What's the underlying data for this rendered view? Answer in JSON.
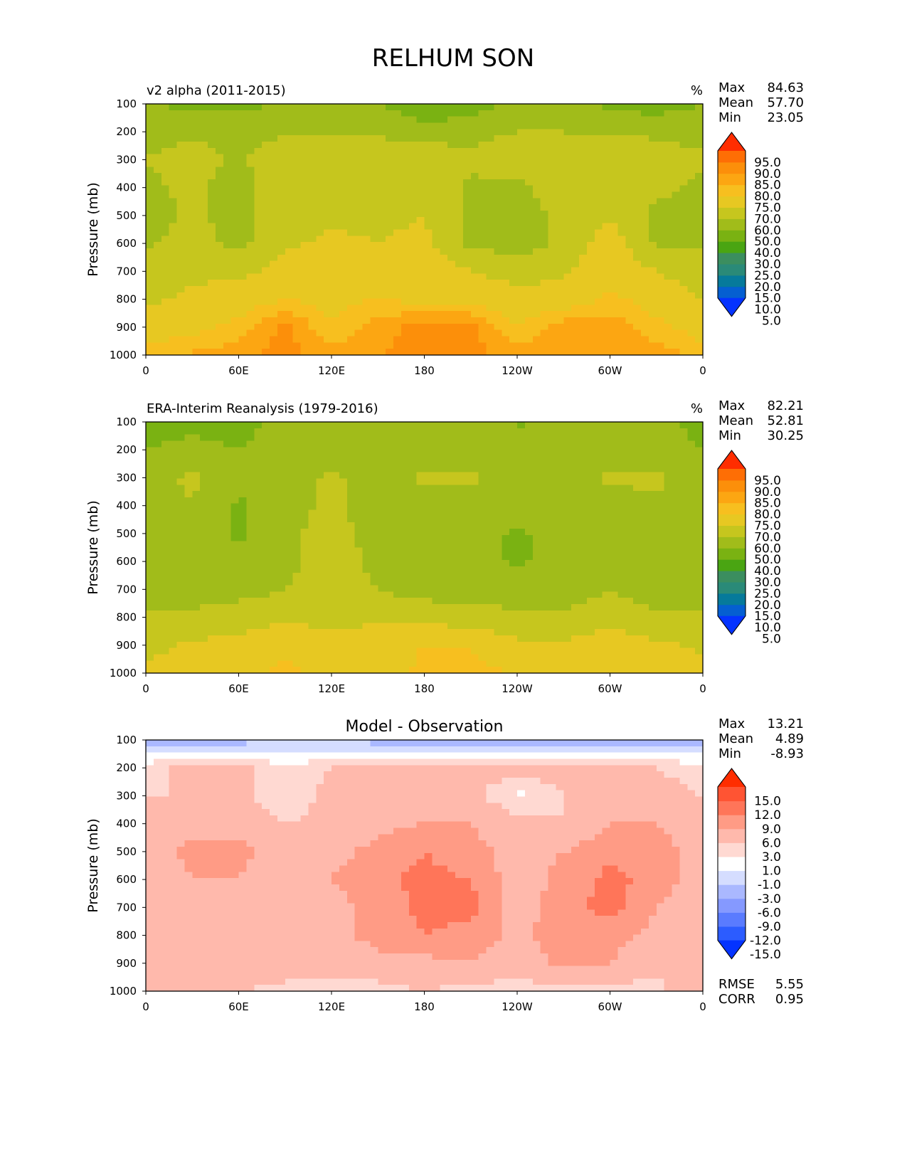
{
  "page": {
    "title": "RELHUM SON"
  },
  "colors": {
    "abs": [
      "#0433ff",
      "#055fd1",
      "#067a9b",
      "#2a8a78",
      "#3b8e5f",
      "#4aa512",
      "#7ab212",
      "#a1bc1a",
      "#c6c61e",
      "#e7c822",
      "#f7bf1f",
      "#fca612",
      "#fc8f0a",
      "#fe6e05",
      "#ff2d00"
    ],
    "diff": [
      "#0433ff",
      "#2c5cff",
      "#5a7bff",
      "#8599ff",
      "#aab8ff",
      "#d5ddff",
      "#ffffff",
      "#ffd9d2",
      "#ffb9ac",
      "#ff9b85",
      "#ff7559",
      "#ff5433",
      "#ff2d00"
    ]
  },
  "chart_data": [
    {
      "type": "heatmap",
      "title": "v2 alpha (2011-2015)",
      "units": "%",
      "xlabel": "",
      "ylabel": "Pressure (mb)",
      "x_ticks": [
        "0",
        "60E",
        "120E",
        "180",
        "120W",
        "60W",
        "0"
      ],
      "y_ticks": [
        "100",
        "200",
        "300",
        "400",
        "500",
        "600",
        "700",
        "800",
        "900",
        "1000"
      ],
      "xlim": [
        0,
        360
      ],
      "ylim": [
        100,
        1000
      ],
      "stats": [
        {
          "label": "Max",
          "value": "84.63"
        },
        {
          "label": "Mean",
          "value": "57.70"
        },
        {
          "label": "Min",
          "value": "23.05"
        }
      ],
      "colorbar": {
        "labels": [
          "95.0",
          "90.0",
          "85.0",
          "80.0",
          "75.0",
          "70.0",
          "60.0",
          "50.0",
          "40.0",
          "30.0",
          "25.0",
          "20.0",
          "15.0",
          "10.0",
          "5.0"
        ],
        "extend": "both"
      },
      "x": [
        0,
        30,
        60,
        90,
        120,
        150,
        180,
        210,
        240,
        270,
        300,
        330,
        360
      ],
      "y": [
        100,
        200,
        300,
        400,
        500,
        600,
        700,
        800,
        900,
        1000
      ],
      "z": [
        [
          40,
          38,
          38,
          40,
          45,
          42,
          30,
          35,
          42,
          42,
          38,
          35,
          40
        ],
        [
          46,
          48,
          46,
          48,
          50,
          48,
          46,
          46,
          50,
          50,
          48,
          48,
          46
        ],
        [
          50,
          55,
          48,
          58,
          58,
          58,
          58,
          52,
          58,
          58,
          58,
          56,
          52
        ],
        [
          48,
          52,
          45,
          58,
          58,
          58,
          58,
          48,
          47,
          58,
          58,
          52,
          48
        ],
        [
          45,
          52,
          45,
          58,
          58,
          58,
          60,
          48,
          45,
          52,
          58,
          48,
          45
        ],
        [
          48,
          55,
          47,
          58,
          62,
          60,
          62,
          48,
          46,
          52,
          66,
          48,
          48
        ],
        [
          55,
          58,
          57,
          64,
          67,
          67,
          67,
          60,
          55,
          58,
          68,
          60,
          55
        ],
        [
          58,
          62,
          66,
          70,
          68,
          70,
          68,
          68,
          65,
          65,
          72,
          66,
          60
        ],
        [
          66,
          68,
          72,
          82,
          70,
          78,
          82,
          82,
          70,
          78,
          78,
          72,
          66
        ],
        [
          72,
          76,
          78,
          82,
          78,
          80,
          82,
          82,
          78,
          80,
          80,
          78,
          74
        ]
      ]
    },
    {
      "type": "heatmap",
      "title": "ERA-Interim Reanalysis (1979-2016)",
      "units": "%",
      "xlabel": "",
      "ylabel": "Pressure (mb)",
      "x_ticks": [
        "0",
        "60E",
        "120E",
        "180",
        "120W",
        "60W",
        "0"
      ],
      "y_ticks": [
        "100",
        "200",
        "300",
        "400",
        "500",
        "600",
        "700",
        "800",
        "900",
        "1000"
      ],
      "xlim": [
        0,
        360
      ],
      "ylim": [
        100,
        1000
      ],
      "stats": [
        {
          "label": "Max",
          "value": "82.21"
        },
        {
          "label": "Mean",
          "value": "52.81"
        },
        {
          "label": "Min",
          "value": "30.25"
        }
      ],
      "colorbar": {
        "labels": [
          "95.0",
          "90.0",
          "85.0",
          "80.0",
          "75.0",
          "70.0",
          "60.0",
          "50.0",
          "40.0",
          "30.0",
          "25.0",
          "20.0",
          "15.0",
          "10.0",
          "5.0"
        ],
        "extend": "both"
      },
      "x": [
        0,
        30,
        60,
        90,
        120,
        150,
        180,
        210,
        240,
        270,
        300,
        330,
        360
      ],
      "y": [
        100,
        200,
        300,
        400,
        500,
        600,
        700,
        800,
        900,
        1000
      ],
      "z": [
        [
          38,
          38,
          38,
          42,
          45,
          48,
          42,
          40,
          40,
          40,
          44,
          42,
          38
        ],
        [
          40,
          42,
          40,
          42,
          40,
          40,
          40,
          40,
          40,
          40,
          42,
          42,
          40
        ],
        [
          45,
          52,
          45,
          46,
          52,
          45,
          52,
          52,
          45,
          45,
          52,
          52,
          45
        ],
        [
          45,
          50,
          38,
          46,
          52,
          45,
          46,
          45,
          45,
          45,
          45,
          48,
          45
        ],
        [
          45,
          46,
          38,
          47,
          55,
          45,
          45,
          45,
          38,
          45,
          45,
          45,
          42
        ],
        [
          45,
          45,
          42,
          47,
          57,
          47,
          45,
          45,
          38,
          45,
          45,
          45,
          45
        ],
        [
          46,
          45,
          46,
          50,
          52,
          50,
          46,
          45,
          45,
          45,
          50,
          45,
          45
        ],
        [
          52,
          52,
          56,
          58,
          56,
          58,
          56,
          55,
          52,
          52,
          56,
          52,
          52
        ],
        [
          56,
          62,
          62,
          68,
          65,
          66,
          70,
          70,
          62,
          62,
          66,
          62,
          58
        ],
        [
          64,
          66,
          68,
          72,
          68,
          66,
          72,
          72,
          70,
          70,
          70,
          68,
          64
        ]
      ]
    },
    {
      "type": "heatmap",
      "title": "Model - Observation",
      "units": "",
      "xlabel": "",
      "ylabel": "Pressure (mb)",
      "x_ticks": [
        "0",
        "60E",
        "120E",
        "180",
        "120W",
        "60W",
        "0"
      ],
      "y_ticks": [
        "100",
        "200",
        "300",
        "400",
        "500",
        "600",
        "700",
        "800",
        "900",
        "1000"
      ],
      "xlim": [
        0,
        360
      ],
      "ylim": [
        100,
        1000
      ],
      "stats": [
        {
          "label": "Max",
          "value": "13.21"
        },
        {
          "label": "Mean",
          "value": "4.89"
        },
        {
          "label": "Min",
          "value": "-8.93"
        }
      ],
      "colorbar": {
        "labels": [
          "15.0",
          "12.0",
          "9.0",
          "6.0",
          "3.0",
          "1.0",
          "-1.0",
          "-3.0",
          "-6.0",
          "-9.0",
          "-12.0",
          "-15.0"
        ],
        "extend": "both"
      },
      "extra_stats": [
        {
          "label": "RMSE",
          "value": "5.55"
        },
        {
          "label": "CORR",
          "value": "0.95"
        }
      ],
      "x": [
        0,
        30,
        60,
        90,
        120,
        150,
        180,
        210,
        240,
        270,
        300,
        330,
        360
      ],
      "y": [
        100,
        200,
        300,
        400,
        500,
        600,
        700,
        800,
        900,
        1000
      ],
      "z": [
        [
          -4,
          -4,
          -4,
          -3,
          -3,
          -4,
          -5,
          -5,
          -4,
          -4,
          -5,
          -5,
          -4
        ],
        [
          2,
          4,
          4,
          1,
          3,
          4,
          4,
          4,
          4,
          4,
          4,
          3,
          2
        ],
        [
          3,
          3,
          4,
          1,
          4,
          4,
          4,
          4,
          0.5,
          3,
          4,
          4,
          3
        ],
        [
          3,
          5,
          5,
          3,
          4,
          5,
          6,
          6,
          4,
          3,
          6,
          6,
          3
        ],
        [
          4,
          7,
          7,
          4,
          5,
          7,
          9,
          7,
          5,
          6,
          8,
          8,
          4
        ],
        [
          4,
          6,
          6,
          3,
          6,
          8,
          10,
          9,
          4,
          7,
          10,
          8,
          4
        ],
        [
          4,
          5,
          6,
          4,
          5,
          7,
          10,
          10,
          4,
          8,
          10,
          6,
          4
        ],
        [
          4,
          6,
          6,
          5,
          5,
          7,
          9,
          8,
          5,
          8,
          7,
          5,
          4
        ],
        [
          4,
          5,
          5,
          5,
          4,
          5,
          5,
          6,
          4,
          7,
          6,
          4,
          4
        ],
        [
          6,
          3,
          3,
          2,
          2,
          2,
          3,
          2,
          2,
          2,
          2,
          2,
          6
        ]
      ]
    }
  ]
}
